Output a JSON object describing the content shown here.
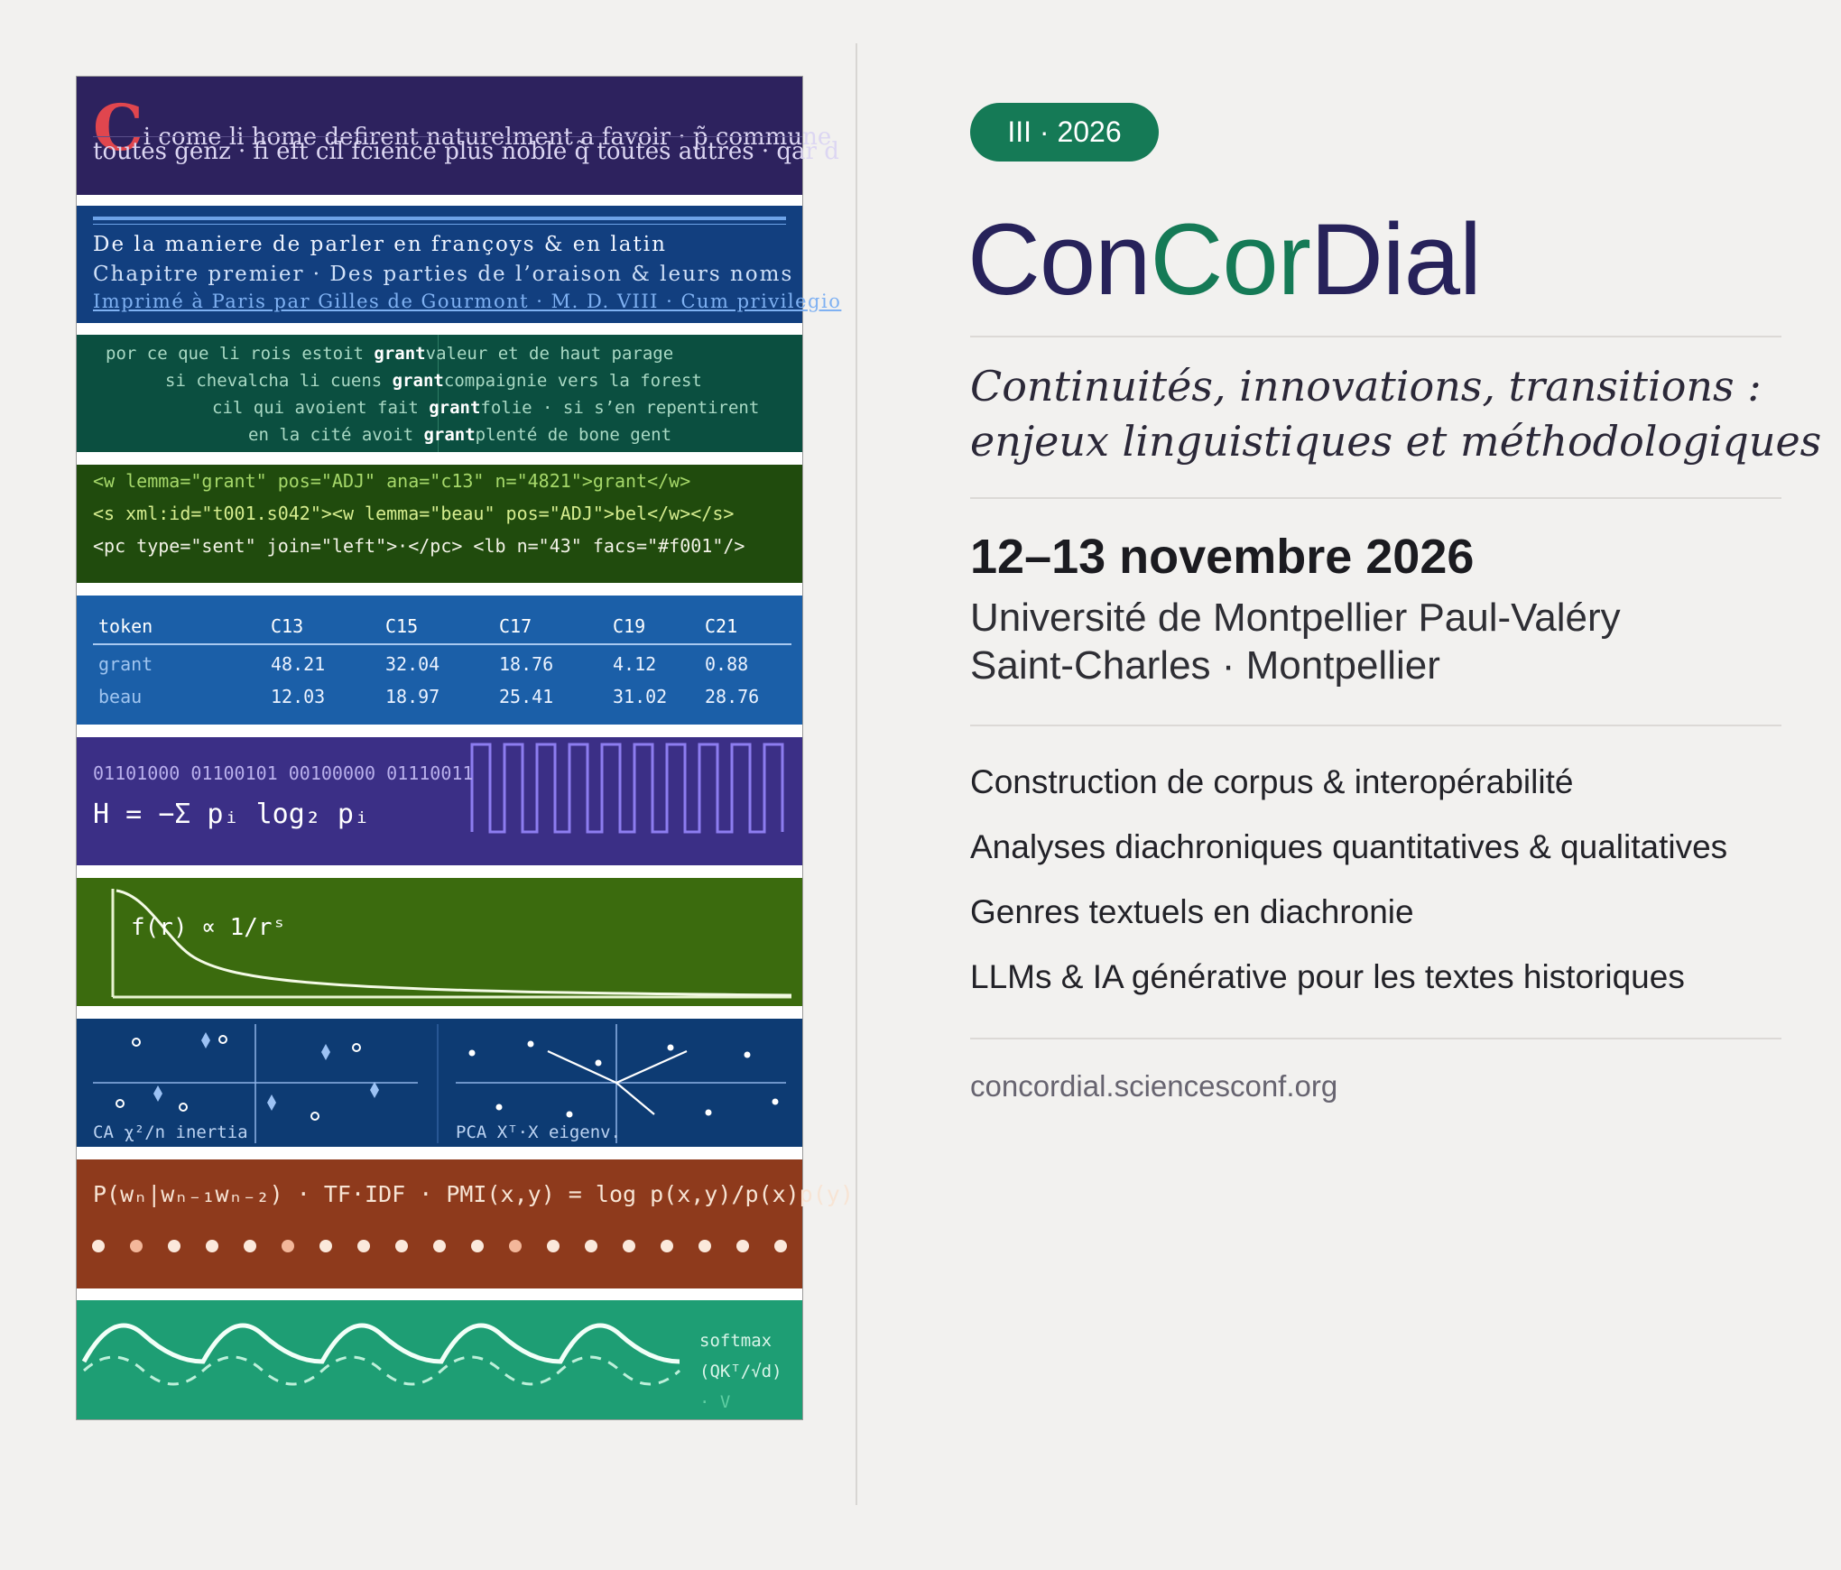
{
  "poster": {
    "edition_badge": "III · 2026",
    "title_part1": "Con",
    "title_part2": "Cor",
    "title_part3": "Dial",
    "subtitle_line1": "Continuités, innovations, transitions :",
    "subtitle_line2": "enjeux linguistiques et méthodologiques",
    "dates": "12–13 novembre 2026",
    "venue_line1": "Université de Montpellier Paul-Valéry",
    "venue_line2": "Saint-Charles · Montpellier",
    "topics": [
      "Construction de corpus & interopérabilité",
      "Analyses diachroniques quantitatives & qualitatives",
      "Genres textuels en diachronie",
      "LLMs & IA générative pour les textes historiques"
    ],
    "url": "concordial.sciencesconf.org"
  },
  "strip": {
    "manuscript_initial": "C",
    "manuscript_line1": "i come li home defirent naturelment a favoir · p̃ commune",
    "manuscript_line2": "toutes genz · fi eft cil fcience plus noble q̃ toutes autres · qar d",
    "print_line1": "De la maniere de parler en françoys & en latin",
    "print_line2": "Chapitre premier · Des parties de l’oraison & leurs noms",
    "print_line3": "Imprimé à Paris par Gilles de Gourmont · M. D. VIII · Cum privilegio",
    "kwic_left": [
      "por ce que li rois estoit ",
      "si chevalcha li cuens ",
      "cil qui avoient fait ",
      "en la cité avoit "
    ],
    "kwic_keyword": "grant",
    "kwic_right": [
      "valeur et de haut parage",
      "compaignie vers la forest",
      "folie · si s’en repentirent",
      "plenté de bone gent"
    ],
    "xml_line1": "<w lemma=\"grant\" pos=\"ADJ\" ana=\"c13\" n=\"4821\">grant</w>",
    "xml_line2": "<s xml:id=\"t001.s042\"><w lemma=\"beau\" pos=\"ADJ\">bel</w></s>",
    "xml_line3": "<pc type=\"sent\" join=\"left\">·</pc> <lb n=\"43\" facs=\"#f001\"/>",
    "table_header": [
      "token",
      "C13",
      "C15",
      "C17",
      "C19",
      "C21"
    ],
    "table_rows": [
      [
        "grant",
        "48.21",
        "32.04",
        "18.76",
        "4.12",
        "0.88"
      ],
      [
        "beau",
        "12.03",
        "18.97",
        "25.41",
        "31.02",
        "28.76"
      ]
    ],
    "binary_text": "01101000 01100101 00100000 01110011",
    "entropy_formula": "H = −Σ pᵢ log₂ pᵢ",
    "zipf_formula": "f(r) ∝ 1/rˢ",
    "ca_caption": "CA χ²/n inertia",
    "pca_caption": "PCA Xᵀ·X eigenv.",
    "ngram_formula": "P(wₙ|wₙ₋₁wₙ₋₂) · TF·IDF · PMI(x,y) = log p(x,y)/p(x)p(y)",
    "softmax_lines": [
      "softmax",
      "(QKᵀ/√d)",
      "· V"
    ]
  },
  "colors": {
    "accent_green": "#157a56",
    "title_navy": "#27225a",
    "background": "#f2f1ef"
  }
}
